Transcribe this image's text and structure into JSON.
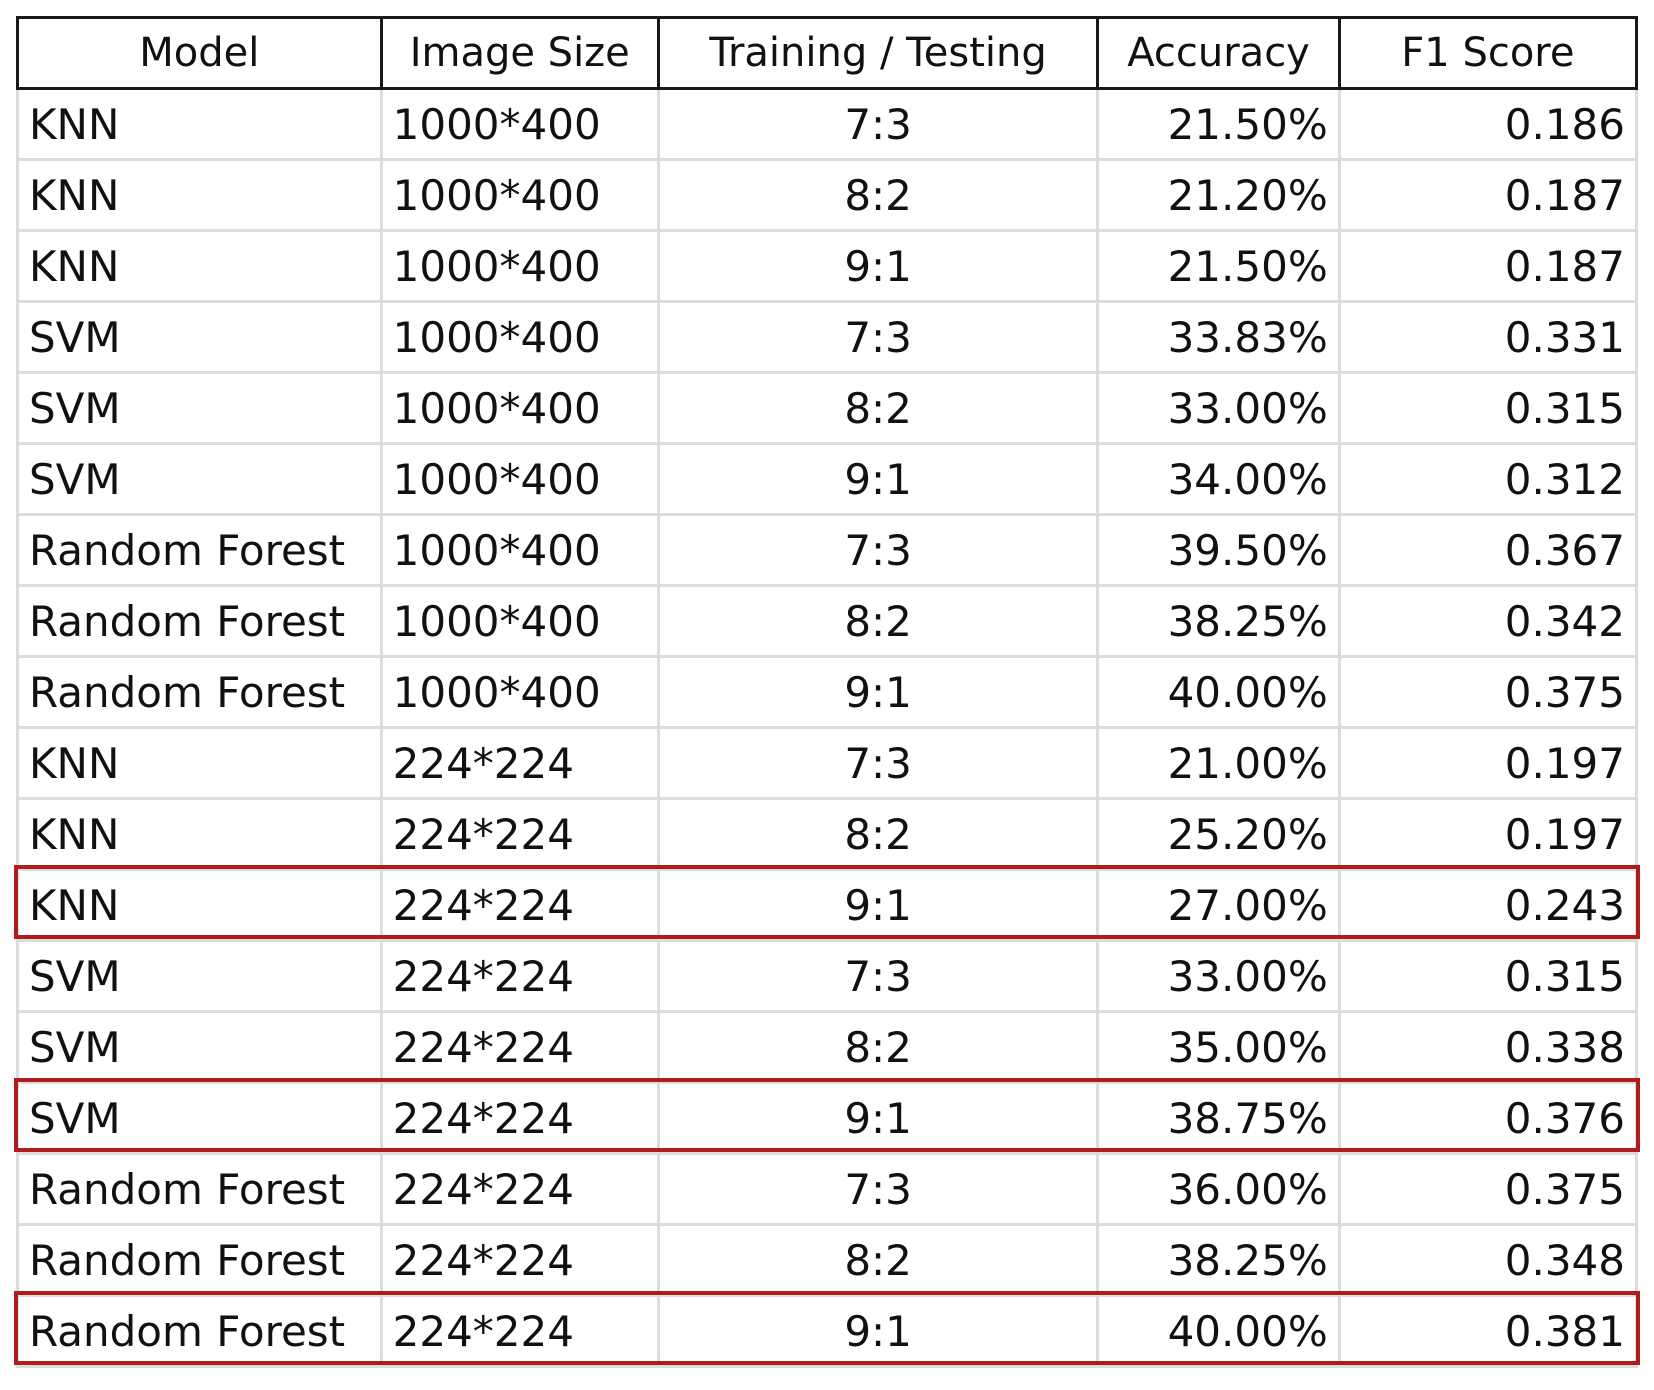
{
  "table": {
    "headers": [
      "Model",
      "Image Size",
      "Training / Testing",
      "Accuracy",
      "F1 Score"
    ],
    "rows": [
      [
        "KNN",
        "1000*400",
        "7:3",
        "21.50%",
        "0.186"
      ],
      [
        "KNN",
        "1000*400",
        "8:2",
        "21.20%",
        "0.187"
      ],
      [
        "KNN",
        "1000*400",
        "9:1",
        "21.50%",
        "0.187"
      ],
      [
        "SVM",
        "1000*400",
        "7:3",
        "33.83%",
        "0.331"
      ],
      [
        "SVM",
        "1000*400",
        "8:2",
        "33.00%",
        "0.315"
      ],
      [
        "SVM",
        "1000*400",
        "9:1",
        "34.00%",
        "0.312"
      ],
      [
        "Random Forest",
        "1000*400",
        "7:3",
        "39.50%",
        "0.367"
      ],
      [
        "Random Forest",
        "1000*400",
        "8:2",
        "38.25%",
        "0.342"
      ],
      [
        "Random Forest",
        "1000*400",
        "9:1",
        "40.00%",
        "0.375"
      ],
      [
        "KNN",
        "224*224",
        "7:3",
        "21.00%",
        "0.197"
      ],
      [
        "KNN",
        "224*224",
        "8:2",
        "25.20%",
        "0.197"
      ],
      [
        "KNN",
        "224*224",
        "9:1",
        "27.00%",
        "0.243"
      ],
      [
        "SVM",
        "224*224",
        "7:3",
        "33.00%",
        "0.315"
      ],
      [
        "SVM",
        "224*224",
        "8:2",
        "35.00%",
        "0.338"
      ],
      [
        "SVM",
        "224*224",
        "9:1",
        "38.75%",
        "0.376"
      ],
      [
        "Random Forest",
        "224*224",
        "7:3",
        "36.00%",
        "0.375"
      ],
      [
        "Random Forest",
        "224*224",
        "8:2",
        "38.25%",
        "0.348"
      ],
      [
        "Random Forest",
        "224*224",
        "9:1",
        "40.00%",
        "0.381"
      ]
    ],
    "highlighted_rows": [
      11,
      14,
      17
    ]
  },
  "colors": {
    "highlight_border": "#b01c1c",
    "header_border": "#1a1a1a",
    "cell_border": "#dcdcdc"
  }
}
